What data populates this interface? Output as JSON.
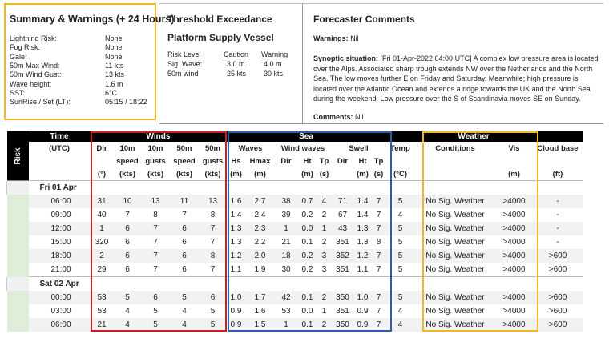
{
  "summary": {
    "title": "Summary & Warnings (+ 24 Hours)",
    "rows": [
      {
        "label": "Lightning Risk:",
        "value": "None"
      },
      {
        "label": "Fog Risk:",
        "value": "None"
      },
      {
        "label": "Gale:",
        "value": "None"
      },
      {
        "label": "50m Max Wind:",
        "value": "11 kts"
      },
      {
        "label": "50m Wind Gust:",
        "value": "13 kts"
      },
      {
        "label": "Wave height:",
        "value": "1.6 m"
      },
      {
        "label": "SST:",
        "value": "6°C"
      },
      {
        "label": "SunRise / Set (LT):",
        "value": "05:15 / 18:22"
      }
    ]
  },
  "threshold": {
    "title": "Threshold Exceedance",
    "subtitle": "Platform Supply Vessel",
    "col_risk": "Risk Level",
    "col_caution": "Caution",
    "col_warning": "Warning",
    "rows": [
      {
        "label": "Sig. Wave:",
        "caution": "3.0 m",
        "warning": "4.0 m"
      },
      {
        "label": "50m wind",
        "caution": "25 kts",
        "warning": "30 kts"
      }
    ]
  },
  "forecaster": {
    "title": "Forecaster Comments",
    "warnings_label": "Warnings:",
    "warnings_value": "Nil",
    "synoptic_label": "Synoptic situation:",
    "synoptic_text": "[Fri 01-Apr-2022 04:00 UTC] A complex low pressure area is located over the Alps. Associated sharp trough extends NW over the Netherlands and the North Sea. The low moves further E on Friday and Saturday. Meanwhile; high pressure is located over the Atlantic Ocean and extends a ridge towards the UK and the North Sea during the weekend. Low pressure over the S of Scandinavia moves SE on Sunday.",
    "comments_label": "Comments:",
    "comments_value": "Nil"
  },
  "table": {
    "risk_label": "Risk",
    "groups": {
      "time": "Time",
      "winds": "Winds",
      "sea": "Sea",
      "weather": "Weather"
    },
    "time_unit": "(UTC)",
    "winds_cols": [
      [
        "Dir",
        "",
        "(°)"
      ],
      [
        "10m",
        "speed",
        "(kts)"
      ],
      [
        "10m",
        "gusts",
        "(kts)"
      ],
      [
        "50m",
        "speed",
        "(kts)"
      ],
      [
        "50m",
        "gusts",
        "(kts)"
      ]
    ],
    "sea_groups": {
      "waves": "Waves",
      "wind_waves": "Wind waves",
      "swell": "Swell"
    },
    "sea_cols": [
      [
        "Hs",
        "(m)"
      ],
      [
        "Hmax",
        "(m)"
      ],
      [
        "Dir",
        ""
      ],
      [
        "Ht",
        "(m)"
      ],
      [
        "Tp",
        "(s)"
      ],
      [
        "Dir",
        ""
      ],
      [
        "Ht",
        "(m)"
      ],
      [
        "Tp",
        "(s)"
      ]
    ],
    "temp": [
      "Temp",
      "(°C)"
    ],
    "conditions": "Conditions",
    "vis": [
      "Vis",
      "(m)"
    ],
    "cloud": [
      "Cloud base",
      "(ft)"
    ],
    "days": [
      {
        "label": "Fri 01 Apr",
        "rows": [
          [
            "06:00",
            "31",
            "10",
            "13",
            "11",
            "13",
            "1.6",
            "2.7",
            "38",
            "0.7",
            "4",
            "71",
            "1.4",
            "7",
            "5",
            "No Sig. Weather",
            ">4000",
            "-"
          ],
          [
            "09:00",
            "40",
            "7",
            "8",
            "7",
            "8",
            "1.4",
            "2.4",
            "39",
            "0.2",
            "2",
            "67",
            "1.4",
            "7",
            "4",
            "No Sig. Weather",
            ">4000",
            "-"
          ],
          [
            "12:00",
            "1",
            "6",
            "7",
            "6",
            "7",
            "1.3",
            "2.3",
            "1",
            "0.0",
            "1",
            "43",
            "1.3",
            "7",
            "5",
            "No Sig. Weather",
            ">4000",
            "-"
          ],
          [
            "15:00",
            "320",
            "6",
            "7",
            "6",
            "7",
            "1.3",
            "2.2",
            "21",
            "0.1",
            "2",
            "351",
            "1.3",
            "8",
            "5",
            "No Sig. Weather",
            ">4000",
            "-"
          ],
          [
            "18:00",
            "2",
            "6",
            "7",
            "6",
            "8",
            "1.2",
            "2.0",
            "18",
            "0.2",
            "3",
            "352",
            "1.2",
            "7",
            "5",
            "No Sig. Weather",
            ">4000",
            ">600"
          ],
          [
            "21:00",
            "29",
            "6",
            "7",
            "6",
            "7",
            "1.1",
            "1.9",
            "30",
            "0.2",
            "3",
            "351",
            "1.1",
            "7",
            "5",
            "No Sig. Weather",
            ">4000",
            ">600"
          ]
        ]
      },
      {
        "label": "Sat 02 Apr",
        "rows": [
          [
            "00:00",
            "53",
            "5",
            "6",
            "5",
            "6",
            "1.0",
            "1.7",
            "42",
            "0.1",
            "2",
            "350",
            "1.0",
            "7",
            "5",
            "No Sig. Weather",
            ">4000",
            ">600"
          ],
          [
            "03:00",
            "53",
            "4",
            "5",
            "4",
            "5",
            "0.9",
            "1.6",
            "53",
            "0.0",
            "1",
            "351",
            "0.9",
            "7",
            "4",
            "No Sig. Weather",
            ">4000",
            ">600"
          ],
          [
            "06:00",
            "21",
            "4",
            "5",
            "4",
            "5",
            "0.9",
            "1.5",
            "1",
            "0.1",
            "2",
            "350",
            "0.9",
            "7",
            "4",
            "No Sig. Weather",
            ">4000",
            ">600"
          ]
        ]
      }
    ]
  },
  "colors": {
    "winds_box": "#cc1f1f",
    "sea_box": "#2b5fae",
    "weather_box": "#f2b824",
    "summary_box": "#f2b824"
  }
}
